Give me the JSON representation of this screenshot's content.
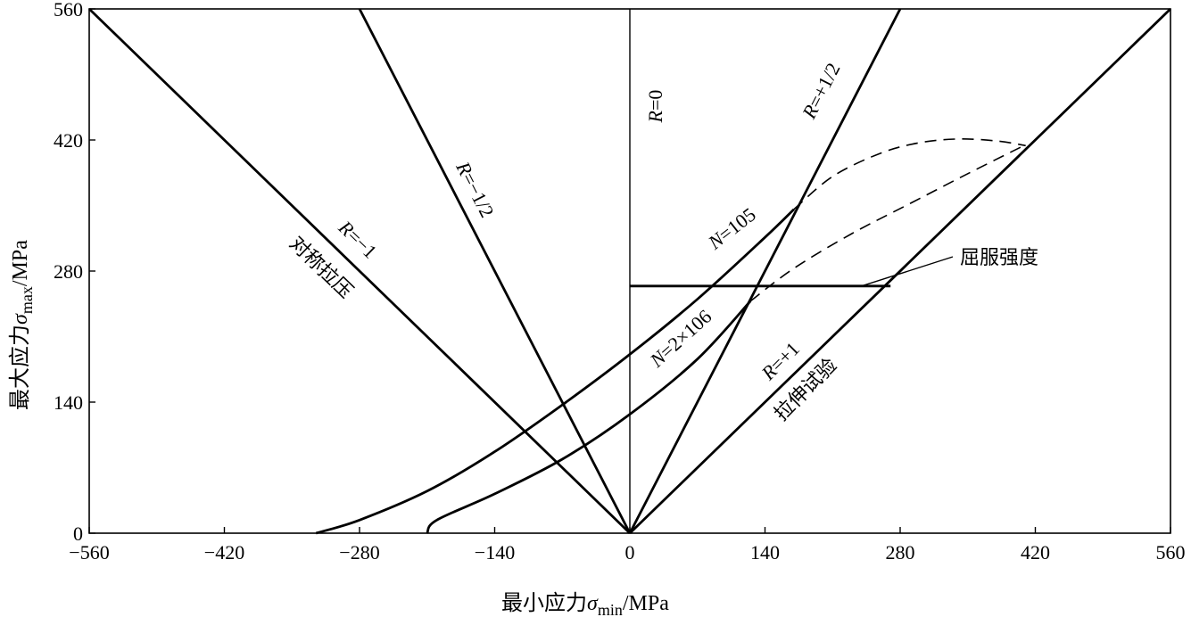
{
  "chart_data": {
    "type": "line",
    "xlabel_main": "最小应力",
    "xlabel_symbol": "σ",
    "xlabel_sub": "min",
    "xlabel_unit": "/MPa",
    "ylabel_main": "最大应力",
    "ylabel_symbol": "σ",
    "ylabel_sub": "max",
    "ylabel_unit": "/MPa",
    "xlim": [
      -560,
      560
    ],
    "ylim": [
      0,
      560
    ],
    "x_ticks": [
      -560,
      -420,
      -280,
      -140,
      0,
      140,
      280,
      420,
      560
    ],
    "y_ticks": [
      0,
      140,
      280,
      420,
      560
    ],
    "x_tick_labels": [
      "−560",
      "−420",
      "−280",
      "−140",
      "0",
      "140",
      "280",
      "420",
      "560"
    ],
    "y_tick_labels": [
      "0",
      "140",
      "280",
      "420",
      "560"
    ],
    "grid": false,
    "series": [
      {
        "name": "R=−1",
        "style": "solid",
        "x": [
          0,
          -560
        ],
        "y": [
          0,
          560
        ]
      },
      {
        "name": "R=−1/2",
        "style": "solid",
        "x": [
          0,
          -280
        ],
        "y": [
          0,
          560
        ]
      },
      {
        "name": "R=0",
        "style": "thin",
        "x": [
          0,
          0
        ],
        "y": [
          0,
          560
        ]
      },
      {
        "name": "R=+1/2",
        "style": "solid",
        "x": [
          0,
          280
        ],
        "y": [
          0,
          560
        ]
      },
      {
        "name": "R=+1",
        "style": "solid",
        "x": [
          0,
          560
        ],
        "y": [
          0,
          560
        ]
      },
      {
        "name": "N=105",
        "style": "solid",
        "x": [
          -325,
          -280,
          -210,
          -140,
          -70,
          0,
          70,
          140,
          170
        ],
        "y": [
          0,
          14,
          45,
          87,
          137,
          191,
          250,
          316,
          346
        ]
      },
      {
        "name": "N=105 (dashed)",
        "style": "dashed",
        "x": [
          170,
          210,
          260,
          300,
          340,
          380,
          410
        ],
        "y": [
          346,
          381,
          406,
          417,
          421,
          419,
          414
        ]
      },
      {
        "name": "N=2×106",
        "style": "solid",
        "x": [
          -210,
          -200,
          -140,
          -70,
          0,
          70,
          125
        ],
        "y": [
          0,
          14,
          42,
          79,
          127,
          186,
          248
        ]
      },
      {
        "name": "N=2×106 (dashed)",
        "style": "dashed",
        "x": [
          125,
          170,
          230,
          290,
          350,
          410
        ],
        "y": [
          248,
          283,
          320,
          352,
          384,
          415
        ]
      },
      {
        "name": "屈服强度",
        "style": "solid",
        "x": [
          0,
          270
        ],
        "y": [
          264,
          264
        ]
      }
    ],
    "annotations": {
      "r_minus_1": "R=−1",
      "symmetric": "对称拉压",
      "r_minus_half": "R=−1/2",
      "r_zero": "R=0",
      "r_plus_half": "R=+1/2",
      "r_plus_1": "R=+1",
      "tension_test": "拉伸试验",
      "n_105": "N=105",
      "n_2x106": "N=2×106",
      "yield": "屈服强度"
    }
  }
}
